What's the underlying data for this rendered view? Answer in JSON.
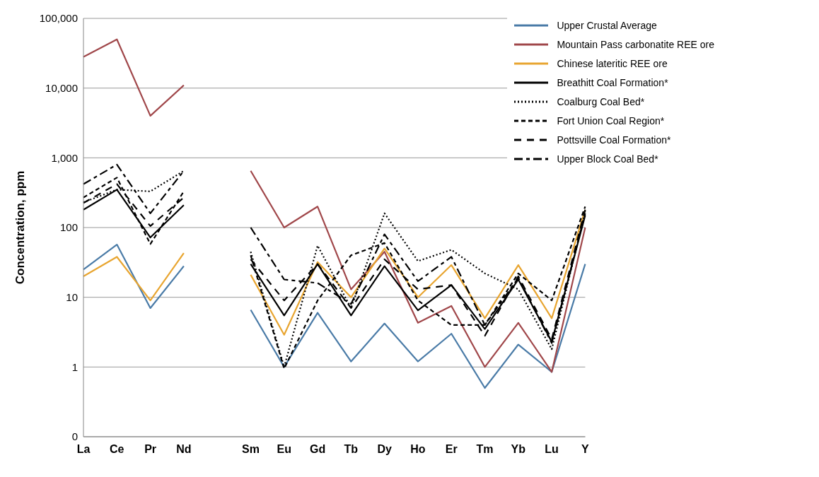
{
  "chart_data": {
    "type": "line",
    "ylabel": "Concentration, ppm",
    "categories": [
      "La",
      "Ce",
      "Pr",
      "Nd",
      null,
      "Sm",
      "Eu",
      "Gd",
      "Tb",
      "Dy",
      "Ho",
      "Er",
      "Tm",
      "Yb",
      "Lu",
      "Y"
    ],
    "log": "y",
    "ylim": [
      0.1,
      100000
    ],
    "yticks": [
      {
        "value": 0.1,
        "label": "0"
      },
      1,
      10,
      {
        "value": 100,
        "label": "100"
      },
      {
        "value": 1000,
        "label": "1,000"
      },
      {
        "value": 10000,
        "label": "10,000"
      },
      {
        "value": 100000,
        "label": "100,000"
      }
    ],
    "grid": "y",
    "legend": "top right",
    "marker": "none",
    "series": [
      {
        "name": "Upper Crustal Average",
        "color": "#4a7ba7",
        "line_style": "solid",
        "values": [
          25,
          57,
          7,
          28,
          null,
          6.6,
          1,
          6,
          1.2,
          4.2,
          1.2,
          3,
          0.5,
          2.1,
          0.85,
          30
        ]
      },
      {
        "name": "Mountain Pass carbonatite REE ore",
        "color": "#a0474a",
        "line_style": "solid",
        "values": [
          28000,
          50000,
          4000,
          11000,
          null,
          650,
          100,
          200,
          13,
          45,
          4.3,
          7.5,
          1,
          4.3,
          0.85,
          100
        ]
      },
      {
        "name": "Chinese lateritic REE ore",
        "color": "#e8a530",
        "line_style": "solid",
        "values": [
          20,
          38,
          9,
          43,
          null,
          21,
          2.9,
          32,
          10,
          50,
          10,
          29,
          5,
          29,
          5,
          180
        ]
      },
      {
        "name": "Breathitt Coal Formation*",
        "color": "#000000",
        "line_style": "solid",
        "values": [
          180,
          350,
          72,
          210,
          null,
          30,
          5.5,
          30,
          5.5,
          28,
          6.5,
          15,
          3.5,
          18,
          2.3,
          150
        ]
      },
      {
        "name": "Coalburg Coal Bed*",
        "color": "#000000",
        "line_style": "dotted",
        "values": [
          230,
          350,
          330,
          650,
          null,
          45,
          1,
          55,
          7,
          160,
          33,
          48,
          22,
          13,
          1.8,
          170
        ]
      },
      {
        "name": "Fort Union Coal Region*",
        "color": "#000000",
        "line_style": "dashed",
        "values": [
          270,
          520,
          58,
          330,
          null,
          40,
          0.95,
          9,
          40,
          60,
          9,
          4,
          4,
          22,
          9,
          200
        ]
      },
      {
        "name": "Pottsville Coal Formation*",
        "color": "#000000",
        "line_style": "longdash",
        "values": [
          225,
          420,
          105,
          270,
          null,
          35,
          9,
          30,
          7,
          35,
          13,
          15,
          2.8,
          20,
          2.5,
          180
        ]
      },
      {
        "name": "Upper Block Coal Bed*",
        "color": "#000000",
        "line_style": "dashdot",
        "values": [
          420,
          800,
          160,
          650,
          null,
          100,
          18,
          16,
          8,
          80,
          17,
          38,
          4,
          19,
          2.2,
          160
        ]
      }
    ]
  }
}
